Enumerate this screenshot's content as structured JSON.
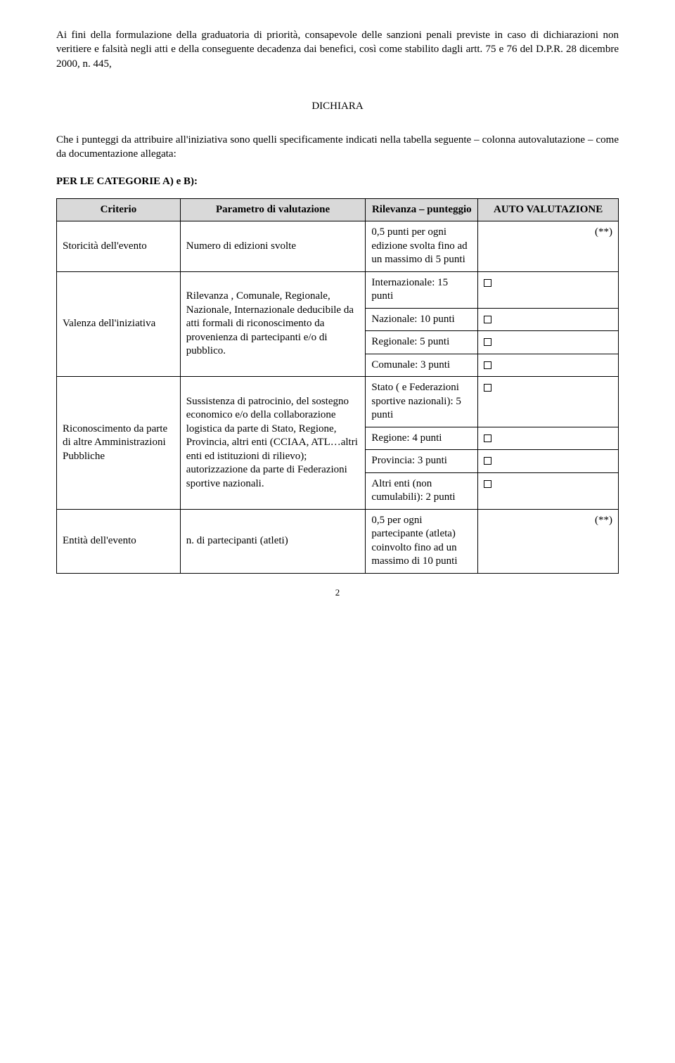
{
  "intro": "Ai fini della formulazione della graduatoria di priorità, consapevole delle sanzioni penali previste in caso di dichiarazioni non veritiere e falsità negli atti e della conseguente decadenza dai benefici, così come stabilito dagli artt. 75 e 76 del D.P.R. 28 dicembre 2000, n. 445,",
  "dichiara": "DICHIARA",
  "che": "Che i punteggi da attribuire all'iniziativa sono quelli specificamente indicati nella tabella seguente – colonna autovalutazione – come da documentazione allegata:",
  "percat": "PER LE CATEGORIE  A) e  B):",
  "headers": {
    "criterio": "Criterio",
    "parametro": "Parametro di valutazione",
    "rilevanza": "Rilevanza – punteggio",
    "auto": "AUTO VALUTAZIONE"
  },
  "rows": {
    "r1": {
      "crit": "Storicità dell'evento",
      "param": "Numero di edizioni svolte",
      "rilev": "0,5 punti per ogni edizione svolta fino ad un massimo di 5 punti",
      "auto": "(**)"
    },
    "r2": {
      "crit": "Valenza dell'iniziativa",
      "param": "Rilevanza , Comunale, Regionale, Nazionale, Internazionale deducibile da atti formali di riconoscimento da provenienza di partecipanti e/o di pubblico.",
      "ril_int": "Internazionale: 15 punti",
      "ril_naz": "Nazionale: 10 punti",
      "ril_reg": "Regionale: 5 punti",
      "ril_com": "Comunale: 3 punti"
    },
    "r3": {
      "crit": "Riconoscimento da parte di altre Amministrazioni Pubbliche",
      "param": "Sussistenza di patrocinio, del sostegno economico e/o della collaborazione logistica da parte di Stato, Regione, Provincia, altri enti (CCIAA, ATL…altri enti ed istituzioni di rilievo); autorizzazione da parte di Federazioni sportive nazionali.",
      "ril_stato": "Stato ( e Federazioni sportive nazionali): 5 punti",
      "ril_reg": "Regione: 4 punti",
      "ril_prov": "Provincia:  3 punti",
      "ril_altri": "Altri enti (non cumulabili):  2 punti"
    },
    "r4": {
      "crit": "Entità dell'evento",
      "param": "n. di partecipanti  (atleti)",
      "rilev": "0,5 per ogni partecipante (atleta) coinvolto fino ad un massimo di 10 punti",
      "auto": "(**)"
    }
  },
  "pagenum": "2"
}
